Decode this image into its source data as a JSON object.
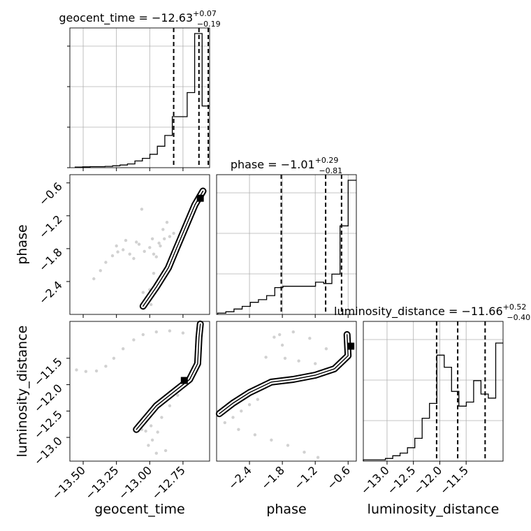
{
  "chart_data": {
    "type": "corner",
    "parameters": [
      "geocent_time",
      "phase",
      "luminosity_distance"
    ],
    "titles": [
      {
        "name": "geocent_time",
        "median": "−12.63",
        "plus": "+0.07",
        "minus": "−0.19"
      },
      {
        "name": "phase",
        "median": "−1.01",
        "plus": "+0.29",
        "minus": "−0.81"
      },
      {
        "name": "luminosity_distance",
        "median": "−11.66",
        "plus": "+0.52",
        "minus": "−0.40"
      }
    ],
    "axis_labels": {
      "x": [
        "geocent_time",
        "phase",
        "luminosity_distance"
      ],
      "y": [
        "phase",
        "luminosity_distance"
      ]
    },
    "ranges": {
      "geocent_time": [
        -13.6,
        -12.55
      ],
      "phase": [
        -3.0,
        -0.45
      ],
      "luminosity_distance": [
        -13.45,
        -10.8
      ]
    },
    "ticks": {
      "geocent_time": [
        -13.5,
        -13.25,
        -13.0,
        -12.75
      ],
      "phase": [
        -2.4,
        -1.8,
        -1.2,
        -0.6
      ],
      "luminosity_distance": [
        -13.0,
        -12.5,
        -12.0,
        -11.5
      ]
    },
    "tick_labels": {
      "geocent_time": [
        "−13.50",
        "−13.25",
        "−13.00",
        "−12.75"
      ],
      "phase": [
        "−2.4",
        "−1.8",
        "−1.2",
        "−0.6"
      ],
      "luminosity_distance": [
        "−13.0",
        "−12.5",
        "−12.0",
        "−11.5"
      ]
    },
    "quantiles": {
      "geocent_time": [
        -12.82,
        -12.63,
        -12.56
      ],
      "phase": [
        -1.82,
        -1.01,
        -0.72
      ],
      "luminosity_distance": [
        -12.06,
        -11.66,
        -11.14
      ]
    },
    "histograms": {
      "geocent_time": {
        "range": [
          -13.56,
          -12.55
        ],
        "counts": [
          0.004,
          0.006,
          0.008,
          0.008,
          0.01,
          0.014,
          0.02,
          0.028,
          0.05,
          0.07,
          0.1,
          0.16,
          0.24,
          0.38,
          0.38,
          0.56,
          1.0,
          0.46
        ]
      },
      "phase": {
        "range": [
          -2.98,
          -0.45
        ],
        "counts": [
          0.01,
          0.02,
          0.04,
          0.06,
          0.09,
          0.11,
          0.14,
          0.2,
          0.21,
          0.21,
          0.21,
          0.21,
          0.24,
          0.23,
          0.3,
          0.66,
          1.0
        ]
      },
      "luminosity_distance": {
        "range": [
          -13.45,
          -10.8
        ],
        "counts": [
          0.01,
          0.01,
          0.01,
          0.02,
          0.04,
          0.06,
          0.1,
          0.17,
          0.32,
          0.43,
          0.79,
          0.7,
          0.52,
          0.41,
          0.44,
          0.6,
          0.5,
          0.47,
          0.88
        ]
      }
    },
    "samples": {
      "phase_vs_geocent_time": [
        [
          -13.42,
          -2.35
        ],
        [
          -13.37,
          -2.2
        ],
        [
          -13.33,
          -2.05
        ],
        [
          -13.28,
          -1.93
        ],
        [
          -13.24,
          -1.86
        ],
        [
          -13.2,
          -1.82
        ],
        [
          -13.15,
          -1.9
        ],
        [
          -13.12,
          -1.98
        ],
        [
          -13.08,
          -1.72
        ],
        [
          -13.04,
          -1.85
        ],
        [
          -13.0,
          -1.78
        ],
        [
          -12.97,
          -1.9
        ],
        [
          -12.93,
          -1.7
        ],
        [
          -12.89,
          -1.62
        ],
        [
          -12.85,
          -1.58
        ],
        [
          -12.82,
          -1.52
        ],
        [
          -12.95,
          -1.95
        ],
        [
          -12.97,
          -2.25
        ],
        [
          -13.0,
          -2.55
        ],
        [
          -13.02,
          -2.72
        ],
        [
          -12.99,
          -2.82
        ],
        [
          -13.05,
          -2.6
        ],
        [
          -13.25,
          -1.75
        ],
        [
          -13.18,
          -1.65
        ],
        [
          -13.1,
          -1.68
        ],
        [
          -12.98,
          -1.62
        ],
        [
          -12.9,
          -1.45
        ],
        [
          -12.87,
          -1.32
        ],
        [
          -13.06,
          -1.08
        ],
        [
          -12.92,
          -1.75
        ]
      ],
      "luminosity_distance_vs_geocent_time": [
        [
          -13.55,
          -11.72
        ],
        [
          -13.48,
          -11.75
        ],
        [
          -13.4,
          -11.74
        ],
        [
          -13.33,
          -11.65
        ],
        [
          -13.27,
          -11.5
        ],
        [
          -13.2,
          -11.32
        ],
        [
          -13.12,
          -11.15
        ],
        [
          -13.05,
          -11.05
        ],
        [
          -12.95,
          -11.0
        ],
        [
          -12.85,
          -10.98
        ],
        [
          -12.75,
          -11.02
        ],
        [
          -13.03,
          -12.88
        ],
        [
          -12.99,
          -12.78
        ],
        [
          -13.01,
          -13.15
        ],
        [
          -12.95,
          -13.3
        ],
        [
          -12.91,
          -12.62
        ],
        [
          -12.85,
          -12.4
        ],
        [
          -12.79,
          -12.2
        ],
        [
          -13.06,
          -12.85
        ],
        [
          -12.98,
          -13.05
        ],
        [
          -12.94,
          -12.9
        ],
        [
          -12.88,
          -13.25
        ]
      ],
      "luminosity_distance_vs_phase": [
        [
          -2.85,
          -12.72
        ],
        [
          -2.7,
          -12.62
        ],
        [
          -2.55,
          -12.5
        ],
        [
          -2.4,
          -12.38
        ],
        [
          -2.25,
          -12.28
        ],
        [
          -2.6,
          -12.85
        ],
        [
          -2.3,
          -12.95
        ],
        [
          -2.0,
          -13.05
        ],
        [
          -1.7,
          -13.15
        ],
        [
          -1.4,
          -13.28
        ],
        [
          -1.15,
          -13.38
        ],
        [
          -1.85,
          -11.05
        ],
        [
          -1.6,
          -11.0
        ],
        [
          -1.3,
          -11.12
        ],
        [
          -1.0,
          -11.32
        ],
        [
          -2.1,
          -11.48
        ],
        [
          -1.75,
          -11.5
        ],
        [
          -1.5,
          -11.55
        ],
        [
          -1.2,
          -11.6
        ],
        [
          -1.8,
          -11.25
        ],
        [
          -1.95,
          -11.1
        ]
      ]
    }
  }
}
